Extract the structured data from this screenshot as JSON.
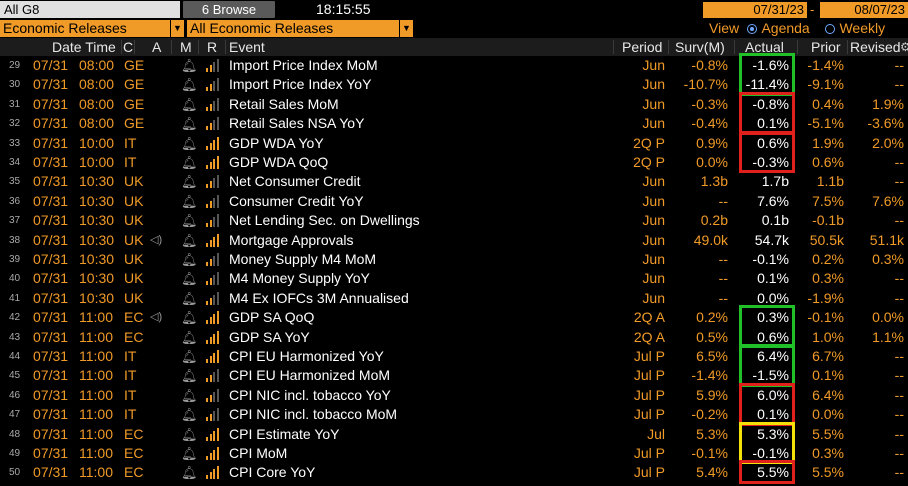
{
  "toolbar": {
    "group_field": "All G8",
    "browse_label": "Browse",
    "browse_icon": "6",
    "clock": "18:15:55",
    "start_date": "07/31/23",
    "date_separator": "-",
    "end_date": "08/07/23"
  },
  "filters": {
    "left_select": "Economic Releases",
    "right_select": "All Economic Releases",
    "view_label": "View",
    "agenda_label": "Agenda",
    "weekly_label": "Weekly"
  },
  "columns": {
    "date_time": "Date Time",
    "c": "C",
    "a": "A",
    "m": "M",
    "r": "R",
    "event": "Event",
    "period": "Period",
    "surv": "Surv(M)",
    "actual": "Actual",
    "prior": "Prior",
    "revised": "Revised"
  },
  "colors": {
    "orange": "#f09a28",
    "green_box": "#22c028",
    "red_box": "#e0211b",
    "yellow_box": "#f5e10a"
  },
  "rows": [
    {
      "n": "29",
      "date": "07/31",
      "time": "08:00",
      "c": "GE",
      "speaker": false,
      "relevance": 2,
      "event": "Import Price Index MoM",
      "period": "Jun",
      "surv": "-0.8%",
      "actual": "-1.6%",
      "prior": "-1.4%",
      "revised": "--",
      "box": "green-top"
    },
    {
      "n": "30",
      "date": "07/31",
      "time": "08:00",
      "c": "GE",
      "speaker": false,
      "relevance": 2,
      "event": "Import Price Index YoY",
      "period": "Jun",
      "surv": "-10.7%",
      "actual": "-11.4%",
      "prior": "-9.1%",
      "revised": "--",
      "box": "green-bottom"
    },
    {
      "n": "31",
      "date": "07/31",
      "time": "08:00",
      "c": "GE",
      "speaker": false,
      "relevance": 2,
      "event": "Retail Sales MoM",
      "period": "Jun",
      "surv": "-0.3%",
      "actual": "-0.8%",
      "prior": "0.4%",
      "revised": "1.9%",
      "box": "red-top"
    },
    {
      "n": "32",
      "date": "07/31",
      "time": "08:00",
      "c": "GE",
      "speaker": false,
      "relevance": 2,
      "event": "Retail Sales NSA YoY",
      "period": "Jun",
      "surv": "-0.4%",
      "actual": "0.1%",
      "prior": "-5.1%",
      "revised": "-3.6%",
      "box": "red-bottom"
    },
    {
      "n": "33",
      "date": "07/31",
      "time": "10:00",
      "c": "IT",
      "speaker": false,
      "relevance": 4,
      "event": "GDP WDA YoY",
      "period": "2Q P",
      "surv": "0.9%",
      "actual": "0.6%",
      "prior": "1.9%",
      "revised": "2.0%",
      "box": "red-top"
    },
    {
      "n": "34",
      "date": "07/31",
      "time": "10:00",
      "c": "IT",
      "speaker": false,
      "relevance": 4,
      "event": "GDP WDA QoQ",
      "period": "2Q P",
      "surv": "0.0%",
      "actual": "-0.3%",
      "prior": "0.6%",
      "revised": "--",
      "box": "red-bottom"
    },
    {
      "n": "35",
      "date": "07/31",
      "time": "10:30",
      "c": "UK",
      "speaker": false,
      "relevance": 2,
      "event": "Net Consumer Credit",
      "period": "Jun",
      "surv": "1.3b",
      "actual": "1.7b",
      "prior": "1.1b",
      "revised": "--",
      "box": ""
    },
    {
      "n": "36",
      "date": "07/31",
      "time": "10:30",
      "c": "UK",
      "speaker": false,
      "relevance": 2,
      "event": "Consumer Credit YoY",
      "period": "Jun",
      "surv": "--",
      "actual": "7.6%",
      "prior": "7.5%",
      "revised": "7.6%",
      "box": ""
    },
    {
      "n": "37",
      "date": "07/31",
      "time": "10:30",
      "c": "UK",
      "speaker": false,
      "relevance": 2,
      "event": "Net Lending Sec. on Dwellings",
      "period": "Jun",
      "surv": "0.2b",
      "actual": "0.1b",
      "prior": "-0.1b",
      "revised": "--",
      "box": ""
    },
    {
      "n": "38",
      "date": "07/31",
      "time": "10:30",
      "c": "UK",
      "speaker": true,
      "relevance": 4,
      "event": "Mortgage Approvals",
      "period": "Jun",
      "surv": "49.0k",
      "actual": "54.7k",
      "prior": "50.5k",
      "revised": "51.1k",
      "box": ""
    },
    {
      "n": "39",
      "date": "07/31",
      "time": "10:30",
      "c": "UK",
      "speaker": false,
      "relevance": 2,
      "event": "Money Supply M4 MoM",
      "period": "Jun",
      "surv": "--",
      "actual": "-0.1%",
      "prior": "0.2%",
      "revised": "0.3%",
      "box": ""
    },
    {
      "n": "40",
      "date": "07/31",
      "time": "10:30",
      "c": "UK",
      "speaker": false,
      "relevance": 2,
      "event": "M4 Money Supply YoY",
      "period": "Jun",
      "surv": "--",
      "actual": "0.1%",
      "prior": "0.3%",
      "revised": "--",
      "box": ""
    },
    {
      "n": "41",
      "date": "07/31",
      "time": "10:30",
      "c": "UK",
      "speaker": false,
      "relevance": 2,
      "event": "M4 Ex IOFCs 3M Annualised",
      "period": "Jun",
      "surv": "--",
      "actual": "0.0%",
      "prior": "-1.9%",
      "revised": "--",
      "box": ""
    },
    {
      "n": "42",
      "date": "07/31",
      "time": "11:00",
      "c": "EC",
      "speaker": true,
      "relevance": 4,
      "event": "GDP SA QoQ",
      "period": "2Q A",
      "surv": "0.2%",
      "actual": "0.3%",
      "prior": "-0.1%",
      "revised": "0.0%",
      "box": "green-top"
    },
    {
      "n": "43",
      "date": "07/31",
      "time": "11:00",
      "c": "EC",
      "speaker": false,
      "relevance": 4,
      "event": "GDP SA YoY",
      "period": "2Q A",
      "surv": "0.5%",
      "actual": "0.6%",
      "prior": "1.0%",
      "revised": "1.1%",
      "box": "green-bottom"
    },
    {
      "n": "44",
      "date": "07/31",
      "time": "11:00",
      "c": "IT",
      "speaker": false,
      "relevance": 4,
      "event": "CPI EU Harmonized YoY",
      "period": "Jul P",
      "surv": "6.5%",
      "actual": "6.4%",
      "prior": "6.7%",
      "revised": "--",
      "box": "green-top"
    },
    {
      "n": "45",
      "date": "07/31",
      "time": "11:00",
      "c": "IT",
      "speaker": false,
      "relevance": 2,
      "event": "CPI EU Harmonized MoM",
      "period": "Jul P",
      "surv": "-1.4%",
      "actual": "-1.5%",
      "prior": "0.1%",
      "revised": "--",
      "box": "green-bottom"
    },
    {
      "n": "46",
      "date": "07/31",
      "time": "11:00",
      "c": "IT",
      "speaker": false,
      "relevance": 2,
      "event": "CPI NIC incl. tobacco YoY",
      "period": "Jul P",
      "surv": "5.9%",
      "actual": "6.0%",
      "prior": "6.4%",
      "revised": "--",
      "box": "red-top"
    },
    {
      "n": "47",
      "date": "07/31",
      "time": "11:00",
      "c": "IT",
      "speaker": false,
      "relevance": 2,
      "event": "CPI NIC incl. tobacco MoM",
      "period": "Jul P",
      "surv": "-0.2%",
      "actual": "0.1%",
      "prior": "0.0%",
      "revised": "--",
      "box": "red-bottom"
    },
    {
      "n": "48",
      "date": "07/31",
      "time": "11:00",
      "c": "EC",
      "speaker": false,
      "relevance": 4,
      "event": "CPI Estimate YoY",
      "period": "Jul",
      "surv": "5.3%",
      "actual": "5.3%",
      "prior": "5.5%",
      "revised": "--",
      "box": "yellow-top"
    },
    {
      "n": "49",
      "date": "07/31",
      "time": "11:00",
      "c": "EC",
      "speaker": false,
      "relevance": 4,
      "event": "CPI MoM",
      "period": "Jul P",
      "surv": "-0.1%",
      "actual": "-0.1%",
      "prior": "0.3%",
      "revised": "--",
      "box": "yellow-bottom"
    },
    {
      "n": "50",
      "date": "07/31",
      "time": "11:00",
      "c": "EC",
      "speaker": false,
      "relevance": 4,
      "event": "CPI  Core YoY",
      "period": "Jul P",
      "surv": "5.4%",
      "actual": "5.5%",
      "prior": "5.5%",
      "revised": "--",
      "box": "red-single"
    }
  ]
}
